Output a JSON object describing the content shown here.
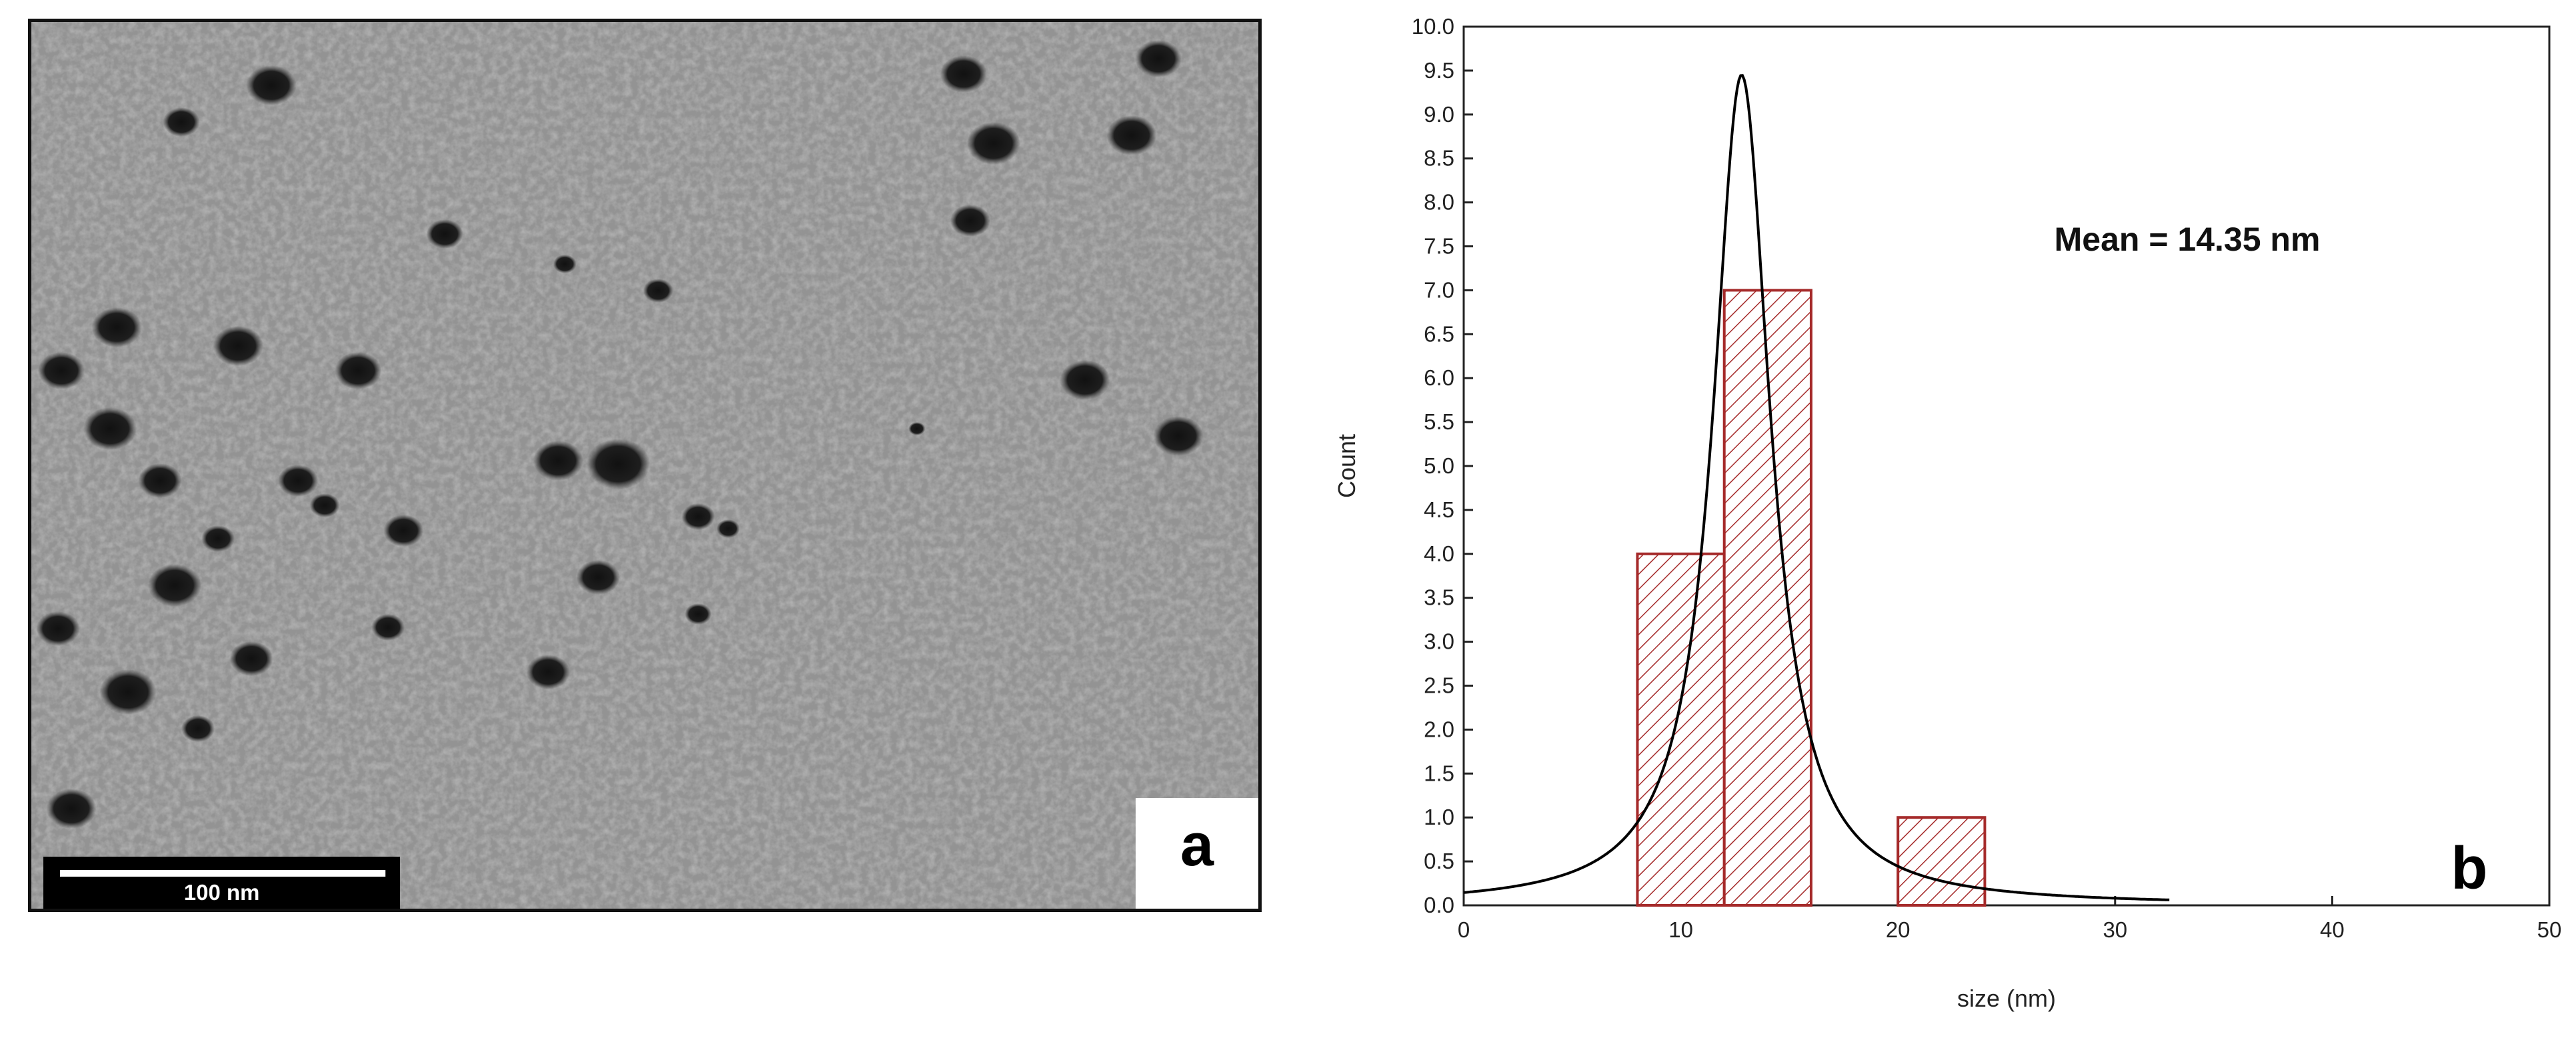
{
  "panel_a": {
    "scale_bar_label": "100 nm",
    "panel_label": "a"
  },
  "chart_data": {
    "type": "bar",
    "title": "",
    "xlabel": "size (nm)",
    "ylabel": "Count",
    "xlim": [
      0,
      50
    ],
    "ylim": [
      0,
      10
    ],
    "x_ticks": [
      0,
      10,
      20,
      30,
      40,
      50
    ],
    "y_ticks": [
      0.0,
      0.5,
      1.0,
      1.5,
      2.0,
      2.5,
      3.0,
      3.5,
      4.0,
      4.5,
      5.0,
      5.5,
      6.0,
      6.5,
      7.0,
      7.5,
      8.0,
      8.5,
      9.0,
      9.5,
      10.0
    ],
    "bins": [
      {
        "start": 8,
        "end": 12,
        "count": 4
      },
      {
        "start": 12,
        "end": 16,
        "count": 7
      },
      {
        "start": 20,
        "end": 24,
        "count": 1
      }
    ],
    "fit_curve": {
      "type": "lorentzian",
      "center": 12.8,
      "peak": 9.45,
      "half_width": 1.6
    },
    "annotation": "Mean = 14.35 nm",
    "panel_label": "b",
    "bar_color": "#a52a2a",
    "curve_color": "#000000"
  }
}
